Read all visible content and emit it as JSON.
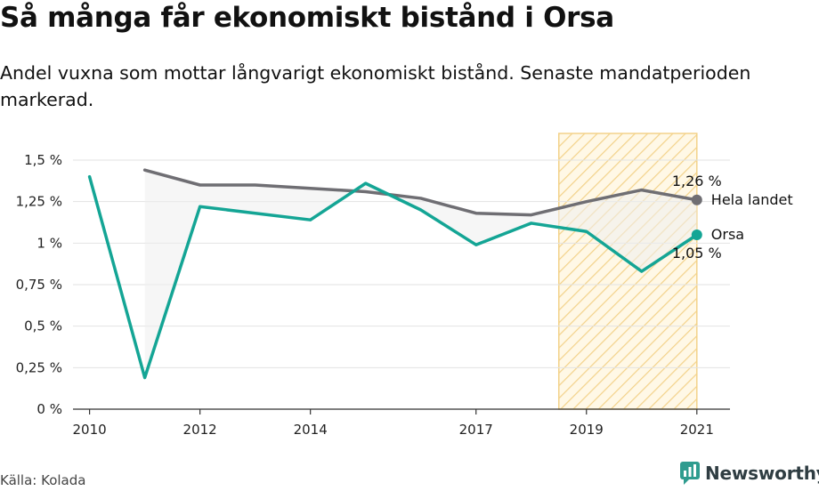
{
  "title": "Så många får ekonomiskt bistånd i Orsa",
  "subtitle": "Andel vuxna som mottar långvarigt ekonomiskt bistånd. Senaste mandatperioden markerad.",
  "source": "Källa: Kolada",
  "brand": "Newsworthy",
  "chart_data": {
    "type": "line",
    "xlim": [
      2009.7,
      2021.6
    ],
    "ylim": [
      0,
      1.5
    ],
    "x_ticks": [
      2010,
      2012,
      2014,
      2017,
      2019,
      2021
    ],
    "y_ticks": [
      {
        "value": 0,
        "label": "0 %"
      },
      {
        "value": 0.25,
        "label": "0,25 %"
      },
      {
        "value": 0.5,
        "label": "0,5 %"
      },
      {
        "value": 0.75,
        "label": "0,75 %"
      },
      {
        "value": 1,
        "label": "1 %"
      },
      {
        "value": 1.25,
        "label": "1,25 %"
      },
      {
        "value": 1.5,
        "label": "1,5 %"
      }
    ],
    "grid": true,
    "highlight_period": {
      "from": 2018.5,
      "to": 2021
    },
    "series": [
      {
        "name": "Hela landet",
        "color": "#6f6e73",
        "x": [
          2011,
          2012,
          2013,
          2014,
          2015,
          2016,
          2017,
          2018,
          2019,
          2020,
          2021
        ],
        "values": [
          1.44,
          1.35,
          1.35,
          1.33,
          1.31,
          1.27,
          1.18,
          1.17,
          1.25,
          1.32,
          1.26
        ],
        "end_label": "1,26 %"
      },
      {
        "name": "Orsa",
        "color": "#14a595",
        "x": [
          2010,
          2011,
          2012,
          2013,
          2014,
          2015,
          2016,
          2017,
          2018,
          2019,
          2020,
          2021
        ],
        "values": [
          1.4,
          0.19,
          1.22,
          1.18,
          1.14,
          1.36,
          1.2,
          0.99,
          1.12,
          1.07,
          0.83,
          1.05
        ],
        "end_label": "1,05 %"
      }
    ]
  }
}
